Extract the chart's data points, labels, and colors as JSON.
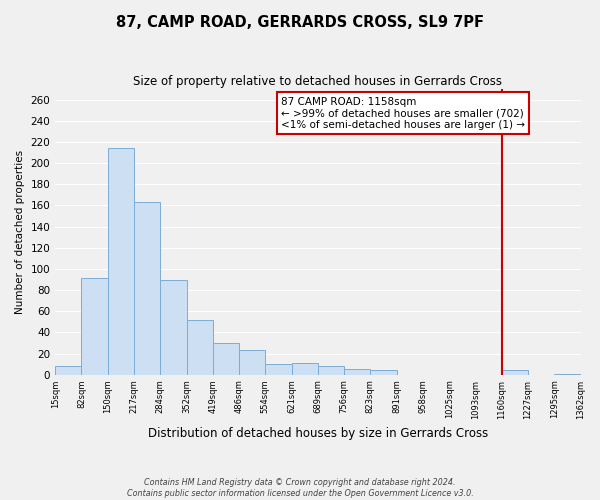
{
  "title": "87, CAMP ROAD, GERRARDS CROSS, SL9 7PF",
  "subtitle": "Size of property relative to detached houses in Gerrards Cross",
  "xlabel": "Distribution of detached houses by size in Gerrards Cross",
  "ylabel": "Number of detached properties",
  "bar_values": [
    8,
    91,
    214,
    163,
    90,
    52,
    30,
    23,
    10,
    11,
    8,
    5,
    4,
    0,
    0,
    0,
    0,
    4,
    0,
    1
  ],
  "bin_labels": [
    "15sqm",
    "82sqm",
    "150sqm",
    "217sqm",
    "284sqm",
    "352sqm",
    "419sqm",
    "486sqm",
    "554sqm",
    "621sqm",
    "689sqm",
    "756sqm",
    "823sqm",
    "891sqm",
    "958sqm",
    "1025sqm",
    "1093sqm",
    "1160sqm",
    "1227sqm",
    "1295sqm",
    "1362sqm"
  ],
  "bar_color": "#ccdff3",
  "bar_edge_color": "#7badd6",
  "ylim": [
    0,
    270
  ],
  "yticks": [
    0,
    20,
    40,
    60,
    80,
    100,
    120,
    140,
    160,
    180,
    200,
    220,
    240,
    260
  ],
  "vline_color": "#cc0000",
  "annotation_title": "87 CAMP ROAD: 1158sqm",
  "annotation_line1": "← >99% of detached houses are smaller (702)",
  "annotation_line2": "<1% of semi-detached houses are larger (1) →",
  "annotation_box_color": "#ffffff",
  "annotation_box_edge": "#cc0000",
  "footer_line1": "Contains HM Land Registry data © Crown copyright and database right 2024.",
  "footer_line2": "Contains public sector information licensed under the Open Government Licence v3.0.",
  "background_color": "#f0f0f0",
  "grid_color": "#ffffff"
}
